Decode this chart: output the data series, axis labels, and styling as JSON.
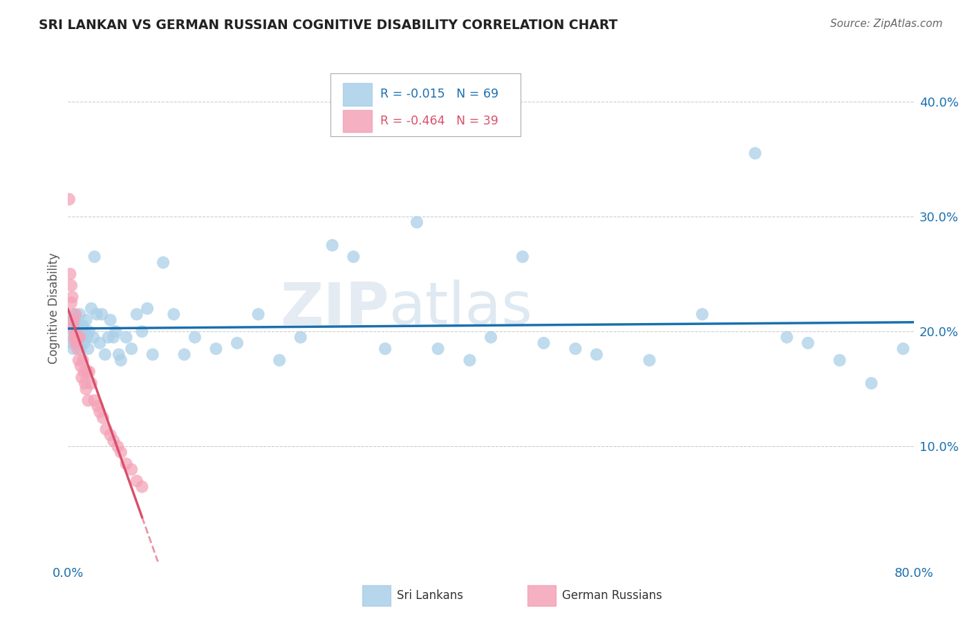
{
  "title": "SRI LANKAN VS GERMAN RUSSIAN COGNITIVE DISABILITY CORRELATION CHART",
  "source": "Source: ZipAtlas.com",
  "ylabel": "Cognitive Disability",
  "xlim": [
    0.0,
    0.8
  ],
  "ylim": [
    0.0,
    0.44
  ],
  "watermark_zip": "ZIP",
  "watermark_atlas": "atlas",
  "sri_lankans_R": -0.015,
  "sri_lankans_N": 69,
  "german_russians_R": -0.464,
  "german_russians_N": 39,
  "blue_color": "#aacfe8",
  "pink_color": "#f4a3b8",
  "blue_line_color": "#1a6faf",
  "pink_line_color": "#d94f6b",
  "blue_text_color": "#1a6faf",
  "pink_text_color": "#d94f6b",
  "title_color": "#222222",
  "grid_color": "#cccccc",
  "sri_lankans_x": [
    0.001,
    0.002,
    0.003,
    0.004,
    0.005,
    0.005,
    0.006,
    0.006,
    0.007,
    0.008,
    0.009,
    0.01,
    0.011,
    0.012,
    0.013,
    0.014,
    0.015,
    0.016,
    0.017,
    0.018,
    0.019,
    0.02,
    0.022,
    0.024,
    0.025,
    0.027,
    0.03,
    0.032,
    0.035,
    0.038,
    0.04,
    0.043,
    0.045,
    0.048,
    0.05,
    0.055,
    0.06,
    0.065,
    0.07,
    0.075,
    0.08,
    0.09,
    0.1,
    0.11,
    0.12,
    0.14,
    0.16,
    0.18,
    0.2,
    0.22,
    0.25,
    0.27,
    0.3,
    0.33,
    0.35,
    0.38,
    0.4,
    0.43,
    0.45,
    0.48,
    0.5,
    0.55,
    0.6,
    0.65,
    0.68,
    0.7,
    0.73,
    0.76,
    0.79
  ],
  "sri_lankans_y": [
    0.205,
    0.195,
    0.21,
    0.19,
    0.215,
    0.185,
    0.2,
    0.21,
    0.195,
    0.205,
    0.19,
    0.2,
    0.215,
    0.185,
    0.195,
    0.205,
    0.19,
    0.2,
    0.21,
    0.195,
    0.185,
    0.2,
    0.22,
    0.195,
    0.265,
    0.215,
    0.19,
    0.215,
    0.18,
    0.195,
    0.21,
    0.195,
    0.2,
    0.18,
    0.175,
    0.195,
    0.185,
    0.215,
    0.2,
    0.22,
    0.18,
    0.26,
    0.215,
    0.18,
    0.195,
    0.185,
    0.19,
    0.215,
    0.175,
    0.195,
    0.275,
    0.265,
    0.185,
    0.295,
    0.185,
    0.175,
    0.195,
    0.265,
    0.19,
    0.185,
    0.18,
    0.175,
    0.215,
    0.355,
    0.195,
    0.19,
    0.175,
    0.155,
    0.185
  ],
  "german_russians_x": [
    0.001,
    0.002,
    0.003,
    0.003,
    0.004,
    0.005,
    0.005,
    0.006,
    0.006,
    0.007,
    0.007,
    0.008,
    0.009,
    0.009,
    0.01,
    0.011,
    0.012,
    0.013,
    0.014,
    0.015,
    0.016,
    0.017,
    0.018,
    0.019,
    0.02,
    0.022,
    0.025,
    0.028,
    0.03,
    0.033,
    0.036,
    0.04,
    0.043,
    0.047,
    0.05,
    0.055,
    0.06,
    0.065,
    0.07
  ],
  "german_russians_y": [
    0.315,
    0.25,
    0.24,
    0.225,
    0.23,
    0.205,
    0.21,
    0.195,
    0.2,
    0.215,
    0.19,
    0.195,
    0.195,
    0.185,
    0.175,
    0.195,
    0.17,
    0.16,
    0.175,
    0.165,
    0.155,
    0.15,
    0.165,
    0.14,
    0.165,
    0.155,
    0.14,
    0.135,
    0.13,
    0.125,
    0.115,
    0.11,
    0.105,
    0.1,
    0.095,
    0.085,
    0.08,
    0.07,
    0.065
  ],
  "yticks": [
    0.1,
    0.2,
    0.3,
    0.4
  ],
  "ytick_labels": [
    "10.0%",
    "20.0%",
    "30.0%",
    "40.0%"
  ],
  "xticks": [
    0.0,
    0.8
  ],
  "xtick_labels": [
    "0.0%",
    "80.0%"
  ]
}
